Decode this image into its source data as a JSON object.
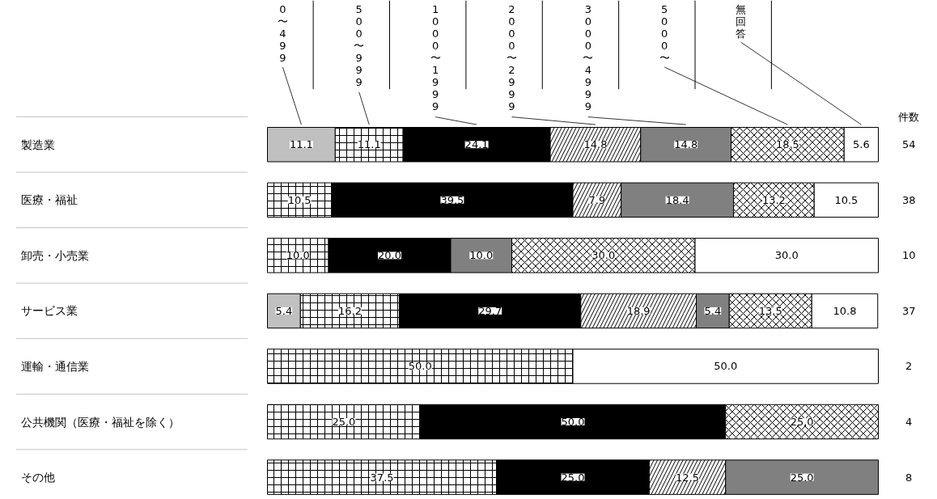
{
  "chart_data": {
    "type": "bar",
    "orientation": "horizontal",
    "stacked": true,
    "legend": "top",
    "grid": false,
    "categories": [
      "製造業",
      "医療・福祉",
      "卸売・小売業",
      "サービス業",
      "運輸・通信業",
      "公共機関（医療・福祉を除く）",
      "その他"
    ],
    "series": [
      {
        "name": "0〜499",
        "color": "#c0c0c0",
        "values": [
          11.1,
          null,
          null,
          5.4,
          null,
          null,
          null
        ],
        "value_labels": [
          "11.1",
          null,
          null,
          "5.4",
          null,
          null,
          null
        ]
      },
      {
        "name": "500〜999",
        "color": "#ffffff",
        "values": [
          11.1,
          10.5,
          10.0,
          16.2,
          50.0,
          25.0,
          37.5
        ],
        "value_labels": [
          "11.1",
          "10.5",
          "10.0",
          "16.2",
          "50.0",
          "25.0",
          "37.5"
        ]
      },
      {
        "name": "1000〜1999",
        "color": "#000000",
        "values": [
          24.1,
          39.5,
          20.0,
          29.7,
          null,
          50.0,
          25.0
        ],
        "value_labels": [
          "24.1",
          "39.5",
          "20.0",
          "29.7",
          null,
          "50.0",
          "25.0"
        ]
      },
      {
        "name": "2000〜2999",
        "color": "#ffffff",
        "values": [
          14.8,
          7.9,
          null,
          18.9,
          null,
          null,
          12.5
        ],
        "value_labels": [
          "14.8",
          "7.9",
          null,
          "18.9",
          null,
          null,
          "12.5"
        ]
      },
      {
        "name": "3000〜4999",
        "color": "#808080",
        "values": [
          14.8,
          18.4,
          10.0,
          5.4,
          null,
          null,
          25.0
        ],
        "value_labels": [
          "14.8",
          "18.4",
          "10.0",
          "5.4",
          null,
          null,
          "25.0"
        ]
      },
      {
        "name": "5000〜",
        "color": "#ffffff",
        "values": [
          18.5,
          13.2,
          30.0,
          13.5,
          null,
          25.0,
          null
        ],
        "value_labels": [
          "18.5",
          "13.2",
          "30.0",
          "13.5",
          null,
          "25.0",
          null
        ]
      },
      {
        "name": "無回答",
        "color": "#ffffff",
        "values": [
          5.6,
          10.5,
          30.0,
          10.8,
          50.0,
          null,
          null
        ],
        "value_labels": [
          "5.6",
          "10.5",
          "30.0",
          "10.8",
          "50.0",
          null,
          null
        ]
      }
    ],
    "annotations": [
      "件数",
      "54",
      "38",
      "10",
      "37",
      "2",
      "4",
      "8"
    ]
  }
}
